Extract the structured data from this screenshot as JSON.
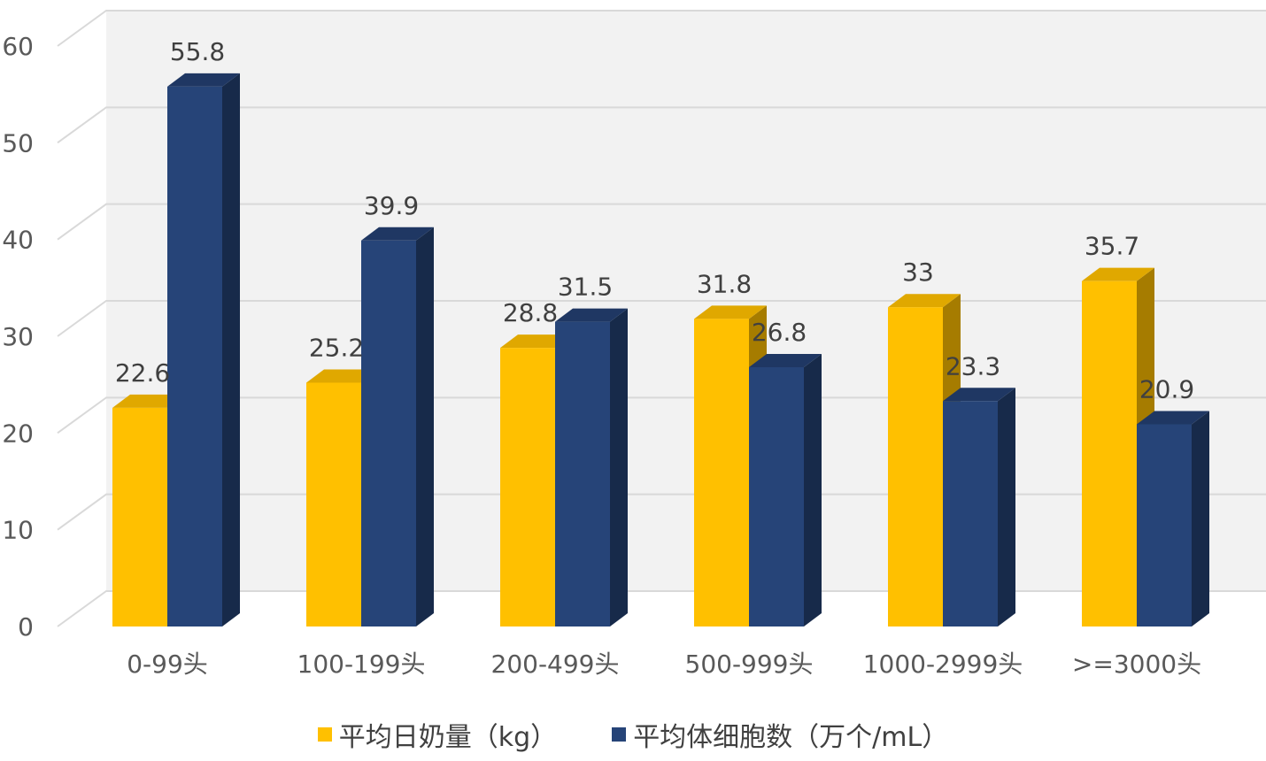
{
  "chart_data": {
    "type": "bar",
    "style": "3d-clustered-column",
    "categories": [
      "0-99头",
      "100-199头",
      "200-499头",
      "500-999头",
      "1000-2999头",
      ">=3000头"
    ],
    "series": [
      {
        "name": "平均日奶量（kg）",
        "values": [
          22.6,
          25.2,
          28.8,
          31.8,
          33,
          35.7
        ],
        "color": "#FFC000"
      },
      {
        "name": "平均体细胞数（万个/mL）",
        "values": [
          55.8,
          39.9,
          31.5,
          26.8,
          23.3,
          20.9
        ],
        "color": "#264478"
      }
    ],
    "data_labels": [
      [
        "22.6",
        "25.2",
        "28.8",
        "31.8",
        "33",
        "35.7"
      ],
      [
        "55.8",
        "39.9",
        "31.5",
        "26.8",
        "23.3",
        "20.9"
      ]
    ],
    "ylim": [
      0,
      60
    ],
    "y_ticks": [
      "0",
      "10",
      "20",
      "30",
      "40",
      "50",
      "60"
    ],
    "grid": true,
    "legend_position": "bottom",
    "title": "",
    "xlabel": "",
    "ylabel": ""
  }
}
